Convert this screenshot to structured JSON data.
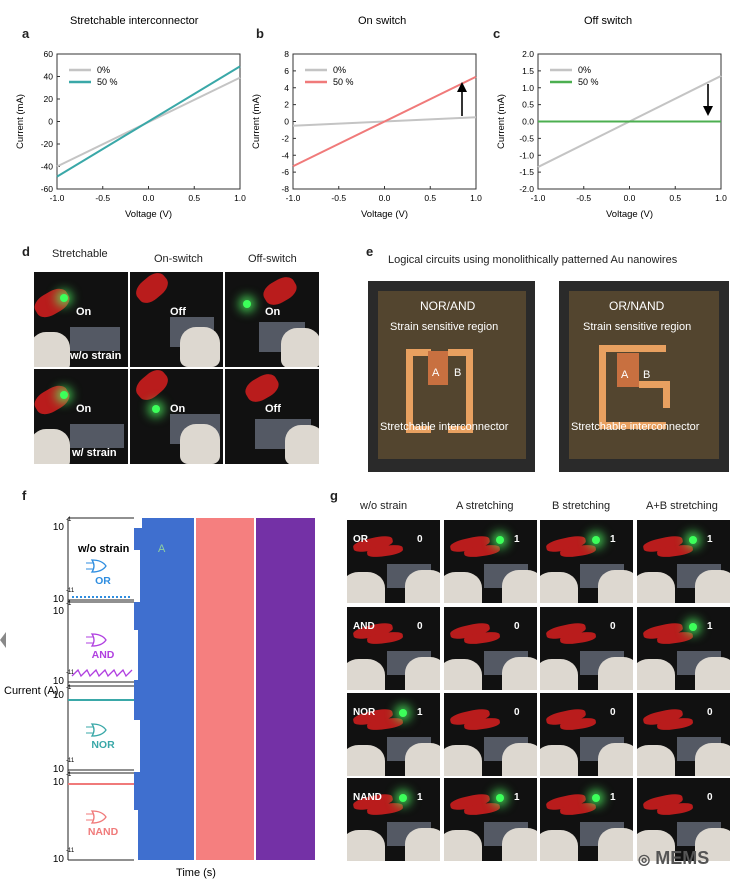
{
  "panels": {
    "a": "a",
    "b": "b",
    "c": "c",
    "d": "d",
    "e": "e",
    "f": "f",
    "g": "g"
  },
  "chart_data": [
    {
      "type": "line",
      "panel": "a",
      "title": "Stretchable interconnector",
      "xlabel": "Voltage (V)",
      "ylabel": "Current (mA)",
      "xlim": [
        -1,
        1
      ],
      "ylim": [
        -60,
        60
      ],
      "xticks": [
        "-1.0",
        "-0.5",
        "0.0",
        "0.5",
        "1.0"
      ],
      "yticks": [
        "-60",
        "-40",
        "-20",
        "0",
        "20",
        "40",
        "60"
      ],
      "series": [
        {
          "name": "0%",
          "color": "#c4c4c4",
          "x": [
            -1,
            1
          ],
          "y": [
            -40,
            39
          ]
        },
        {
          "name": "50 %",
          "color": "#3aa8a8",
          "x": [
            -1,
            1
          ],
          "y": [
            -49,
            49
          ]
        }
      ]
    },
    {
      "type": "line",
      "panel": "b",
      "title": "On switch",
      "xlabel": "Voltage (V)",
      "ylabel": "Current (mA)",
      "xlim": [
        -1,
        1
      ],
      "ylim": [
        -8,
        8
      ],
      "xticks": [
        "-1.0",
        "-0.5",
        "0.0",
        "0.5",
        "1.0"
      ],
      "yticks": [
        "-8",
        "-6",
        "-4",
        "-2",
        "0",
        "2",
        "4",
        "6",
        "8"
      ],
      "series": [
        {
          "name": "0%",
          "color": "#c4c4c4",
          "x": [
            -1,
            1
          ],
          "y": [
            -0.5,
            0.5
          ]
        },
        {
          "name": "50 %",
          "color": "#f07a7a",
          "x": [
            -1,
            1
          ],
          "y": [
            -5.3,
            5.3
          ]
        }
      ]
    },
    {
      "type": "line",
      "panel": "c",
      "title": "Off switch",
      "xlabel": "Voltage (V)",
      "ylabel": "Current (mA)",
      "xlim": [
        -1,
        1
      ],
      "ylim": [
        -2,
        2
      ],
      "xticks": [
        "-1.0",
        "-0.5",
        "0.0",
        "0.5",
        "1.0"
      ],
      "yticks": [
        "-2.0",
        "-1.5",
        "-1.0",
        "-0.5",
        "0.0",
        "0.5",
        "1.0",
        "1.5",
        "2.0"
      ],
      "series": [
        {
          "name": "0%",
          "color": "#c4c4c4",
          "x": [
            -1,
            1
          ],
          "y": [
            -1.35,
            1.35
          ]
        },
        {
          "name": "50 %",
          "color": "#4caf50",
          "x": [
            -1,
            1
          ],
          "y": [
            0,
            0
          ]
        }
      ]
    }
  ],
  "panel_d": {
    "headers": [
      "Stretchable",
      "On-switch",
      "Off-switch"
    ],
    "row1": {
      "labels": [
        "On",
        "Off",
        "On"
      ],
      "strain": "w/o strain"
    },
    "row2": {
      "labels": [
        "On",
        "On",
        "Off"
      ],
      "strain": "w/ strain"
    }
  },
  "panel_e": {
    "title": "Logical circuits using monolithically patterned Au nanowires",
    "left": {
      "name": "NOR/AND",
      "region": "Strain sensitive region",
      "interconnector": "Stretchable interconnector",
      "a": "A",
      "b": "B"
    },
    "right": {
      "name": "OR/NAND",
      "region": "Strain sensitive region",
      "interconnector": "Stretchable interconnector",
      "a": "A",
      "b": "B"
    }
  },
  "panel_f": {
    "ylabel": "Current (A)",
    "xlabel": "Time (s)",
    "strain_label": "w/o strain",
    "a_label": "A",
    "tick_high": "10",
    "tick_high_exp": "-1",
    "tick_low": "10",
    "tick_low_exp": "-11",
    "gates": [
      "OR",
      "AND",
      "NOR",
      "NAND"
    ],
    "colors": {
      "or": "#2f8ee0",
      "and": "#b040e0",
      "nor": "#3aa8a8",
      "nand": "#f07a7a",
      "A": "#3f6fcf",
      "B": "#f57f7f",
      "AB": "#7431a6"
    }
  },
  "panel_g": {
    "headers": [
      "w/o strain",
      "A stretching",
      "B stretching",
      "A+B stretching"
    ],
    "rows": [
      {
        "gate": "OR",
        "values": [
          "0",
          "1",
          "1",
          "1"
        ]
      },
      {
        "gate": "AND",
        "values": [
          "0",
          "0",
          "0",
          "1"
        ]
      },
      {
        "gate": "NOR",
        "values": [
          "1",
          "0",
          "0",
          "0"
        ]
      },
      {
        "gate": "NAND",
        "values": [
          "1",
          "1",
          "1",
          "0"
        ]
      }
    ]
  },
  "watermark": "MEMS"
}
